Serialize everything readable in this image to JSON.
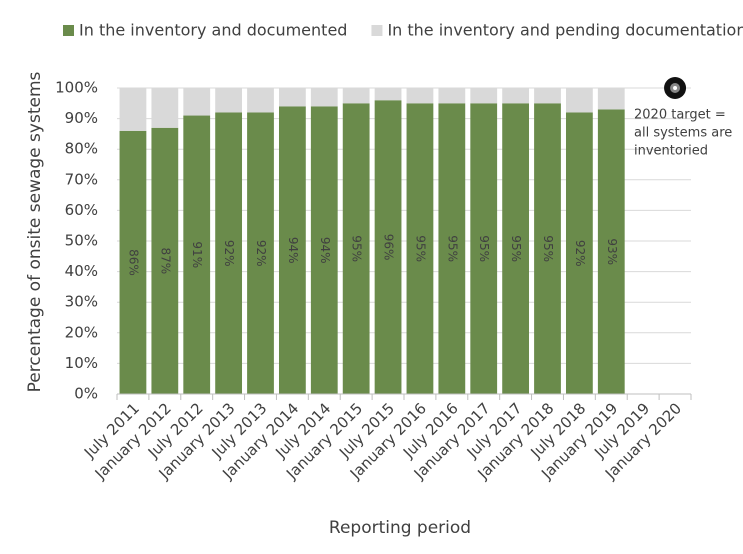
{
  "chart_data": {
    "type": "stacked_bar",
    "x_label": "Reporting period",
    "y_label": "Percentage of onsite sewage systems",
    "categories": [
      "July 2011",
      "January 2012",
      "July 2012",
      "January 2013",
      "July 2013",
      "January 2014",
      "July 2014",
      "January 2015",
      "July 2015",
      "January 2016",
      "July 2016",
      "January 2017",
      "July 2017",
      "January 2018",
      "July 2018",
      "January 2019",
      "July 2019",
      "January 2020"
    ],
    "series": [
      {
        "name": "In the inventory and documented",
        "color": "#6a8b4b",
        "values": [
          86,
          87,
          91,
          92,
          92,
          94,
          94,
          95,
          96,
          95,
          95,
          95,
          95,
          95,
          92,
          93,
          null,
          null
        ],
        "value_labels": [
          "86%",
          "87%",
          "91%",
          "92%",
          "92%",
          "94%",
          "94%",
          "95%",
          "96%",
          "95%",
          "95%",
          "95%",
          "95%",
          "95%",
          "92%",
          "93%",
          null,
          null
        ]
      },
      {
        "name": "In the inventory and pending documentation",
        "color": "#d9d9d9",
        "values": [
          14,
          13,
          9,
          8,
          8,
          6,
          6,
          5,
          4,
          5,
          5,
          5,
          5,
          5,
          8,
          7,
          null,
          null
        ]
      }
    ],
    "target": {
      "value": 100,
      "lines": [
        "2020 target =",
        "all systems are",
        "inventoried"
      ]
    },
    "ylim": [
      0,
      100
    ],
    "yticks": [
      {
        "value": 0,
        "label": "0%"
      },
      {
        "value": 10,
        "label": "10%"
      },
      {
        "value": 20,
        "label": "20%"
      },
      {
        "value": 30,
        "label": "30%"
      },
      {
        "value": 40,
        "label": "40%"
      },
      {
        "value": 50,
        "label": "50%"
      },
      {
        "value": 60,
        "label": "60%"
      },
      {
        "value": 70,
        "label": "70%"
      },
      {
        "value": 80,
        "label": "80%"
      },
      {
        "value": 90,
        "label": "90%"
      },
      {
        "value": 100,
        "label": "100%"
      }
    ],
    "grid": true,
    "legend": "top"
  }
}
